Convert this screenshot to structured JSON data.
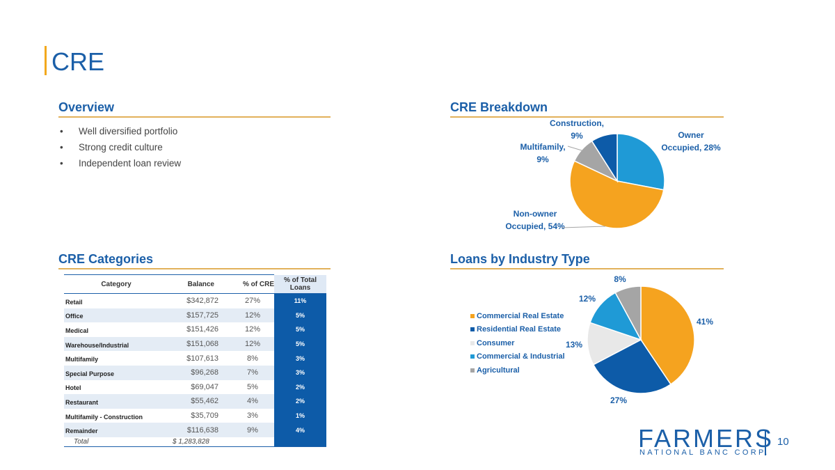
{
  "page": {
    "title": "CRE",
    "page_number": "10"
  },
  "overview": {
    "title": "Overview",
    "bullets": [
      "Well diversified portfolio",
      "Strong credit culture",
      "Independent loan review"
    ]
  },
  "cre_breakdown_title": "CRE Breakdown",
  "cre_categories": {
    "title": "CRE Categories",
    "headers": [
      "Category",
      "Balance",
      "% of CRE",
      "% of Total Loans"
    ],
    "rows": [
      [
        "Retail",
        "$342,872",
        "27%",
        "11%"
      ],
      [
        "Office",
        "$157,725",
        "12%",
        "5%"
      ],
      [
        "Medical",
        "$151,426",
        "12%",
        "5%"
      ],
      [
        "Warehouse/Industrial",
        "$151,068",
        "12%",
        "5%"
      ],
      [
        "Multifamily",
        "$107,613",
        "8%",
        "3%"
      ],
      [
        "Special Purpose",
        "$96,268",
        "7%",
        "3%"
      ],
      [
        "Hotel",
        "$69,047",
        "5%",
        "2%"
      ],
      [
        "Restaurant",
        "$55,462",
        "4%",
        "2%"
      ],
      [
        "Multifamily - Construction",
        "$35,709",
        "3%",
        "1%"
      ],
      [
        "Remainder",
        "$116,638",
        "9%",
        "4%"
      ]
    ],
    "total_label": "Total",
    "total_value": "$  1,283,828"
  },
  "loans_title": "Loans by Industry Type",
  "chart_data": [
    {
      "type": "pie",
      "title": "CRE Breakdown",
      "categories": [
        "Owner Occupied",
        "Non-owner Occupied",
        "Multifamily",
        "Construction"
      ],
      "values": [
        28,
        54,
        9,
        9
      ],
      "labels": [
        [
          "Owner",
          "Occupied, 28%"
        ],
        [
          "Non-owner",
          "Occupied, 54%"
        ],
        [
          "Multifamily,",
          "9%"
        ],
        [
          "Construction,",
          "9%"
        ]
      ],
      "colors": [
        "#1f9ad6",
        "#f5a31f",
        "#a5a5a5",
        "#0d5ba8"
      ]
    },
    {
      "type": "pie",
      "title": "Loans by Industry Type",
      "categories": [
        "Commercial Real Estate",
        "Residential Real Estate",
        "Consumer",
        "Commercial & Industrial",
        "Agricultural"
      ],
      "values": [
        41,
        27,
        13,
        12,
        8
      ],
      "labels": [
        "41%",
        "27%",
        "13%",
        "12%",
        "8%"
      ],
      "colors": [
        "#f5a31f",
        "#0d5ba8",
        "#e8e8e8",
        "#1f9ad6",
        "#a5a5a5"
      ],
      "legend_position": "left"
    }
  ],
  "logo": {
    "name": "FARMERS",
    "subtitle": "NATIONAL BANC CORP."
  }
}
